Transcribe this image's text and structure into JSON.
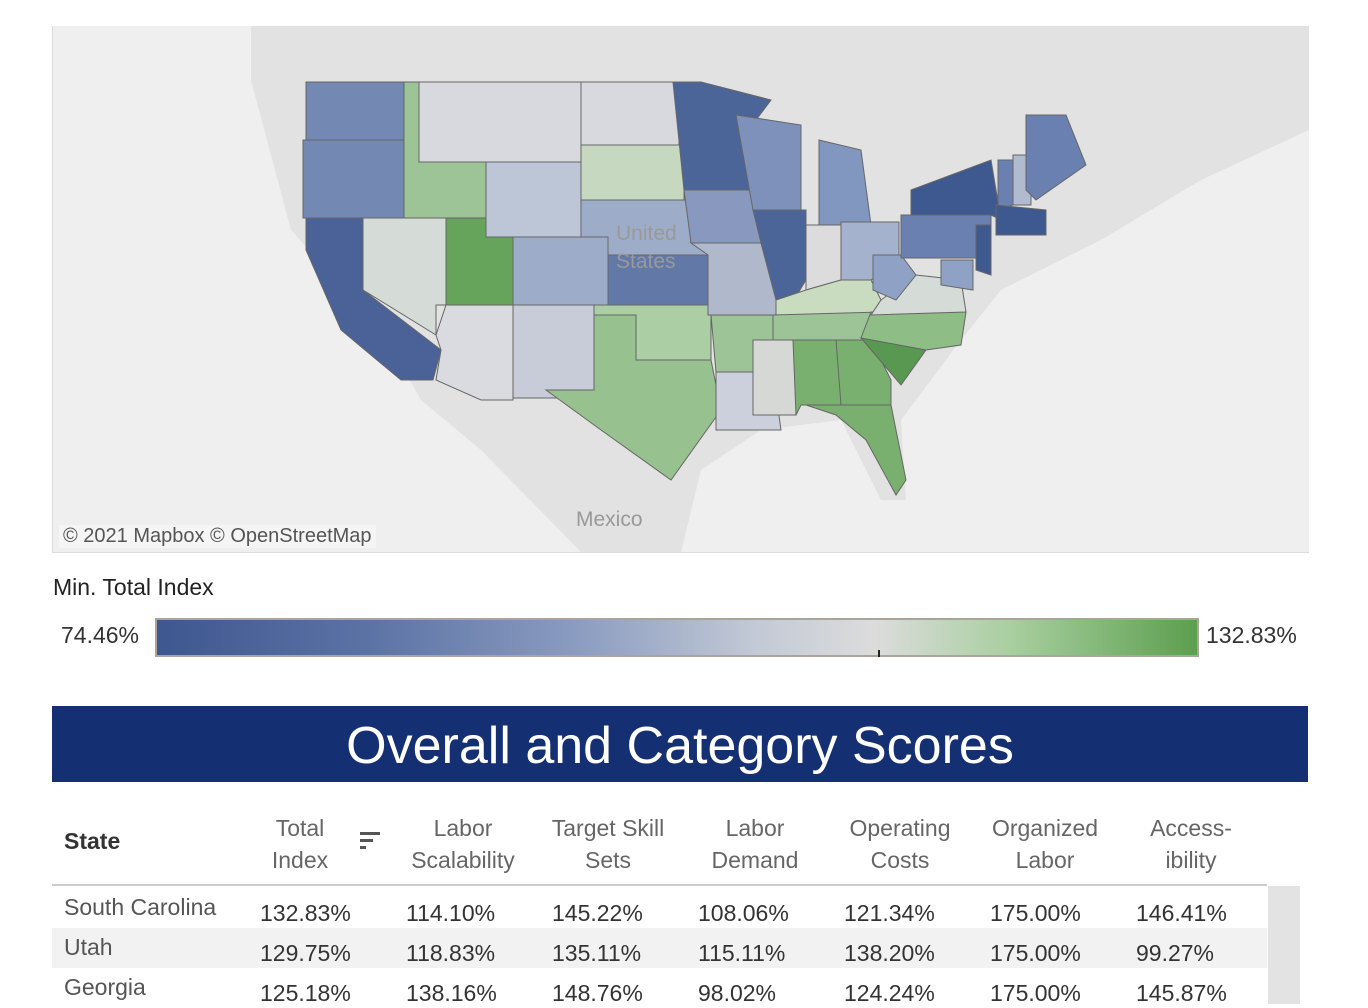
{
  "map": {
    "attribution": "© 2021 Mapbox  © OpenStreetMap",
    "labels": {
      "country": "United States",
      "country_line1": "United",
      "country_line2": "States",
      "mexico": "Mexico"
    },
    "state_fill": {
      "WA": "#7388b3",
      "OR": "#7388b3",
      "CA": "#4a6298",
      "ID": "#9cc497",
      "NV": "#d5dbd7",
      "UT": "#65a45a",
      "AZ": "#d9dbe0",
      "MT": "#d8d9de",
      "WY": "#bcc6d6",
      "CO": "#9dadc9",
      "NM": "#c7ccd8",
      "ND": "#d8d9de",
      "SD": "#c6d8c0",
      "NE": "#9dadc9",
      "KS": "#6279a8",
      "OK": "#abcea5",
      "TX": "#97c28f",
      "MN": "#4c6598",
      "IA": "#8898be",
      "MO": "#b0b8cc",
      "AR": "#9cc497",
      "LA": "#ccd0dc",
      "WI": "#7d91ba",
      "IL": "#4c6598",
      "MI": "#8197c0",
      "IN": "#dcdcdc",
      "OH": "#a4b2cd",
      "KY": "#c9dcc0",
      "TN": "#9cc497",
      "MS": "#d6d8d5",
      "AL": "#7ab06f",
      "GA": "#7ab06f",
      "FL": "#7ab06f",
      "SC": "#589850",
      "NC": "#8fbd86",
      "VA": "#d5dbd7",
      "WV": "#8fa2c5",
      "PA": "#6a80b0",
      "NY": "#3e5890",
      "NJ": "#3e5890",
      "MD": "#8fa2c5",
      "VT": "#6a80b0",
      "NH": "#b0bbd0",
      "MA": "#3e5890",
      "ME": "#6a80b0"
    }
  },
  "legend": {
    "title": "Min. Total Index",
    "min": "74.46%",
    "max": "132.83%",
    "color_low": "#3f5790",
    "color_mid": "#dcdcdc",
    "color_high": "#5c9f4f"
  },
  "banner": {
    "title": "Overall and Category Scores",
    "color": "#142f72"
  },
  "table": {
    "state_header": "State",
    "columns": [
      [
        "Total",
        "Index"
      ],
      [
        "Labor",
        "Scalability"
      ],
      [
        "Target Skill",
        "Sets"
      ],
      [
        "Labor",
        "Demand"
      ],
      [
        "Operating",
        "Costs"
      ],
      [
        "Organized",
        "Labor"
      ],
      [
        "Access-",
        "ibility"
      ]
    ],
    "sort_icon": "sort-descending-icon",
    "rows": [
      {
        "state": "South Carolina",
        "values": [
          "132.83%",
          "114.10%",
          "145.22%",
          "108.06%",
          "121.34%",
          "175.00%",
          "146.41%"
        ]
      },
      {
        "state": "Utah",
        "values": [
          "129.75%",
          "118.83%",
          "135.11%",
          "115.11%",
          "138.20%",
          "175.00%",
          "99.27%"
        ]
      },
      {
        "state": "Georgia",
        "values": [
          "125.18%",
          "138.16%",
          "148.76%",
          "98.02%",
          "124.24%",
          "175.00%",
          "145.87%"
        ]
      }
    ]
  }
}
